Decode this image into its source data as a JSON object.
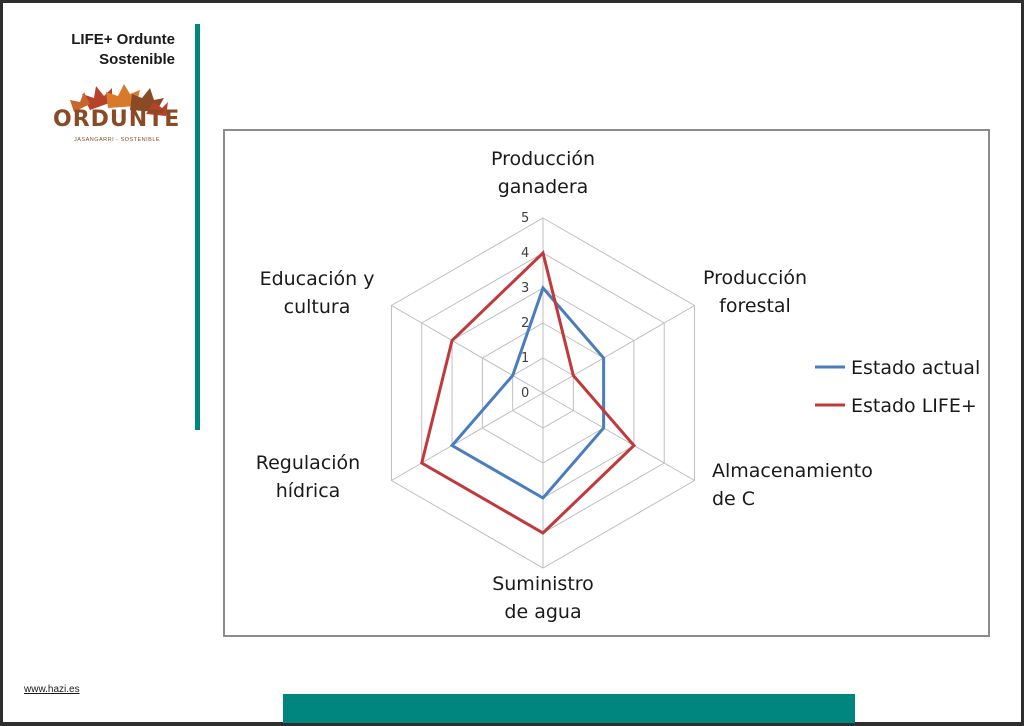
{
  "header": {
    "title_line1": "LIFE+ Ordunte",
    "title_line2": "Sostenible"
  },
  "logo": {
    "word": "ORDUNTE",
    "tagline": "JASANGARRI - SOSTENIBLE"
  },
  "footer": {
    "link_text": "www.hazi.es"
  },
  "colors": {
    "teal": "#00857f",
    "frame": "#2e2e2e",
    "series_actual": "#4a7dbd",
    "series_life": "#c0393b",
    "logo_brown": "#8a4a25",
    "logo_orange": "#d97a2b"
  },
  "chart_data": {
    "type": "radar",
    "categories": [
      [
        "Producción",
        "ganadera"
      ],
      [
        "Producción",
        "forestal"
      ],
      [
        "Almacenamiento",
        "de C"
      ],
      [
        "Suministro",
        "de agua"
      ],
      [
        "Regulación",
        "hídrica"
      ],
      [
        "Educación y",
        "cultura"
      ]
    ],
    "rlim": [
      0,
      5
    ],
    "ticks": [
      "0",
      "1",
      "2",
      "3",
      "4",
      "5"
    ],
    "grid": true,
    "legend": "right",
    "series": [
      {
        "name": "Estado actual",
        "color": "#4a7dbd",
        "values": [
          3,
          2,
          2,
          3,
          3,
          1
        ]
      },
      {
        "name": "Estado LIFE+",
        "color": "#c0393b",
        "values": [
          4,
          1,
          3,
          4,
          4,
          3
        ]
      }
    ]
  }
}
